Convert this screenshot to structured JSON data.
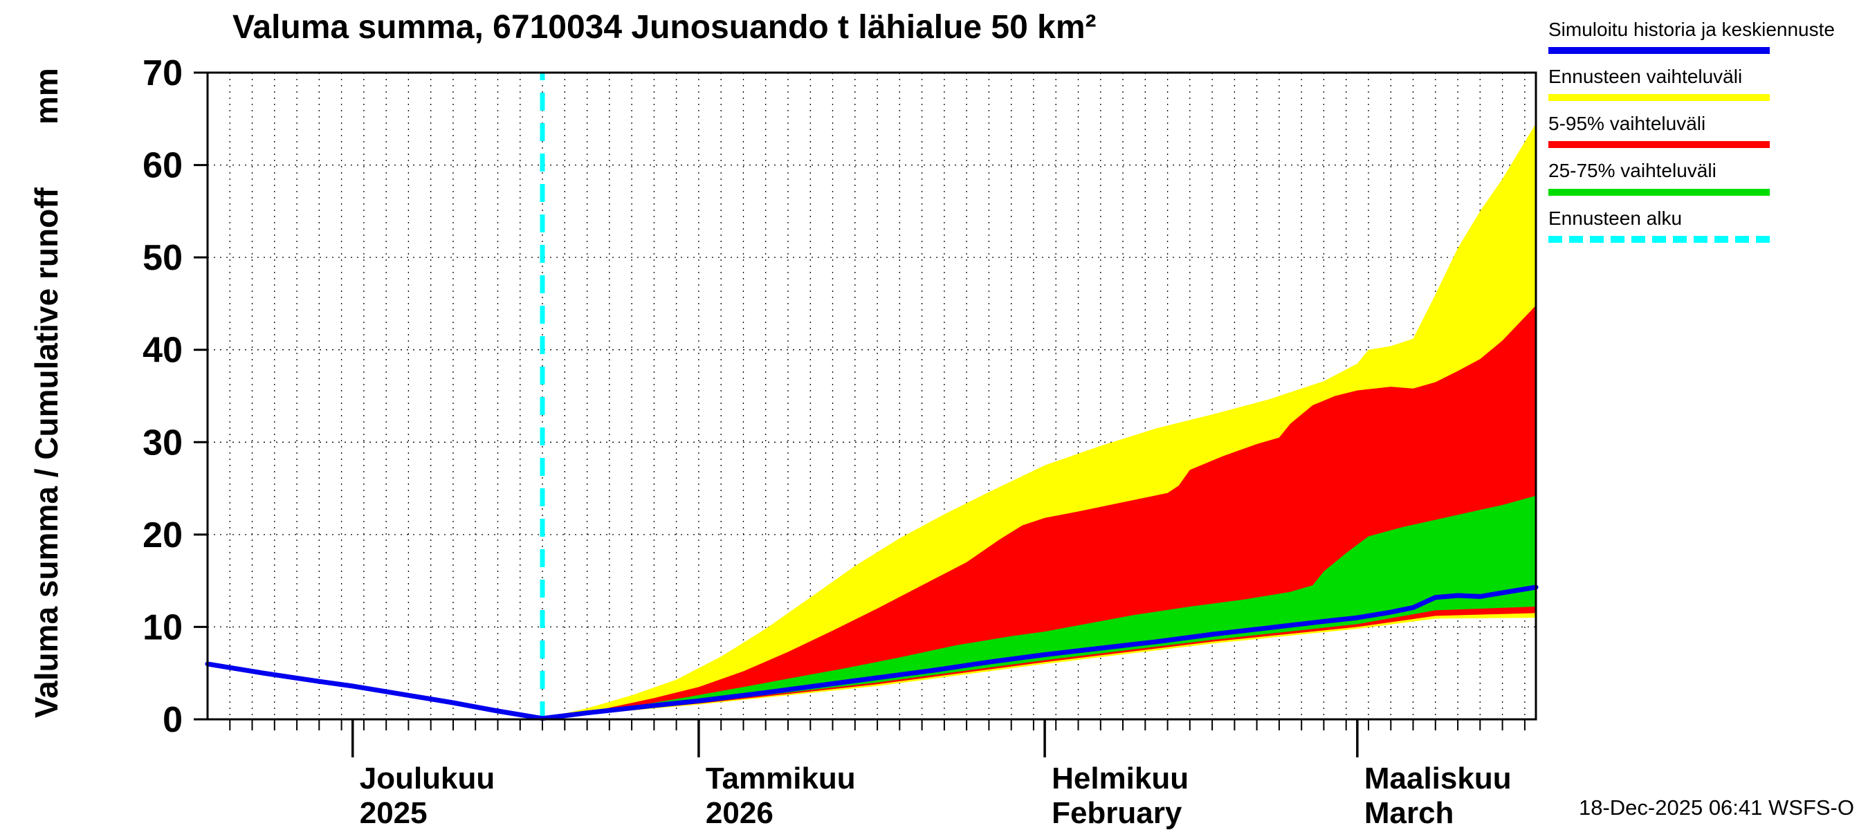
{
  "title": "Valuma summa, 6710034 Junosuando t lähialue 50 km²",
  "y_axis": {
    "label": "Valuma summa / Cumulative runoff",
    "unit": "mm"
  },
  "timestamp": "18-Dec-2025 06:41 WSFS-O",
  "legend": [
    {
      "label": "Simuloitu historia ja keskiennuste",
      "color": "#0000EE",
      "style": "solid"
    },
    {
      "label": "Ennusteen vaihteluväli",
      "color": "#FFFF00",
      "style": "solid"
    },
    {
      "label": "5-95% vaihteluväli",
      "color": "#FF0000",
      "style": "solid"
    },
    {
      "label": "25-75% vaihteluväli",
      "color": "#00DC00",
      "style": "solid"
    },
    {
      "label": "Ennusteen alku",
      "color": "#00FFFF",
      "style": "dashed"
    }
  ],
  "chart_data": {
    "type": "area",
    "title": "Valuma summa, 6710034 Junosuando t lähialue 50 km²",
    "ylabel": "Valuma summa / Cumulative runoff (mm)",
    "ylim": [
      0,
      70
    ],
    "y_ticks": [
      0,
      10,
      20,
      30,
      40,
      50,
      60,
      70
    ],
    "x_axis_days": [
      0,
      119
    ],
    "minor_step_days": 2,
    "grid": "dotted",
    "legend_position": "outside-right",
    "forecast_start_day": 30,
    "forecast_start_color": "#00FFFF",
    "months": [
      {
        "day": 13,
        "line1": "Joulukuu",
        "line2": "2025"
      },
      {
        "day": 44,
        "line1": "Tammikuu",
        "line2": "2026"
      },
      {
        "day": 75,
        "line1": "Helmikuu",
        "line2": "February"
      },
      {
        "day": 103,
        "line1": "Maaliskuu",
        "line2": "March"
      }
    ],
    "bands": [
      {
        "name": "Ennusteen vaihteluväli",
        "color": "#FFFF00",
        "high": [
          [
            30,
            0.1
          ],
          [
            34,
            1.2
          ],
          [
            38,
            2.6
          ],
          [
            42,
            4.3
          ],
          [
            46,
            6.8
          ],
          [
            50,
            9.8
          ],
          [
            54,
            13.2
          ],
          [
            58,
            16.6
          ],
          [
            62,
            19.6
          ],
          [
            66,
            22.2
          ],
          [
            70,
            24.6
          ],
          [
            75,
            27.5
          ],
          [
            80,
            29.6
          ],
          [
            85,
            31.5
          ],
          [
            90,
            33.0
          ],
          [
            95,
            34.6
          ],
          [
            100,
            36.6
          ],
          [
            103,
            38.5
          ],
          [
            104,
            40.0
          ],
          [
            106,
            40.4
          ],
          [
            108,
            41.2
          ],
          [
            110,
            46.0
          ],
          [
            112,
            51.0
          ],
          [
            114,
            55.0
          ],
          [
            116,
            58.5
          ],
          [
            119,
            64.5
          ]
        ],
        "low": [
          [
            30,
            0.1
          ],
          [
            44,
            1.6
          ],
          [
            60,
            3.6
          ],
          [
            75,
            6.0
          ],
          [
            90,
            8.2
          ],
          [
            103,
            9.8
          ],
          [
            110,
            10.9
          ],
          [
            119,
            11.0
          ]
        ]
      },
      {
        "name": "5-95% vaihteluväli",
        "color": "#FF0000",
        "high": [
          [
            30,
            0.1
          ],
          [
            35,
            1.0
          ],
          [
            40,
            2.3
          ],
          [
            44,
            3.5
          ],
          [
            48,
            5.2
          ],
          [
            52,
            7.3
          ],
          [
            56,
            9.6
          ],
          [
            60,
            12.0
          ],
          [
            64,
            14.5
          ],
          [
            68,
            17.0
          ],
          [
            71,
            19.5
          ],
          [
            73,
            21.0
          ],
          [
            75,
            21.8
          ],
          [
            78,
            22.5
          ],
          [
            82,
            23.5
          ],
          [
            86,
            24.5
          ],
          [
            87,
            25.3
          ],
          [
            88,
            27.0
          ],
          [
            91,
            28.5
          ],
          [
            94,
            29.8
          ],
          [
            96,
            30.5
          ],
          [
            97,
            32.0
          ],
          [
            99,
            34.0
          ],
          [
            101,
            35.0
          ],
          [
            103,
            35.6
          ],
          [
            106,
            36.0
          ],
          [
            108,
            35.8
          ],
          [
            110,
            36.5
          ],
          [
            112,
            37.7
          ],
          [
            114,
            39.0
          ],
          [
            116,
            41.0
          ],
          [
            119,
            44.8
          ]
        ],
        "low": [
          [
            30,
            0.1
          ],
          [
            44,
            1.7
          ],
          [
            60,
            3.8
          ],
          [
            75,
            6.2
          ],
          [
            90,
            8.4
          ],
          [
            103,
            10.0
          ],
          [
            110,
            11.2
          ],
          [
            119,
            11.5
          ]
        ]
      },
      {
        "name": "25-75% vaihteluväli",
        "color": "#00DC00",
        "high": [
          [
            30,
            0.1
          ],
          [
            36,
            1.0
          ],
          [
            42,
            2.2
          ],
          [
            48,
            3.5
          ],
          [
            52,
            4.4
          ],
          [
            57,
            5.5
          ],
          [
            62,
            6.7
          ],
          [
            67,
            8.0
          ],
          [
            72,
            9.0
          ],
          [
            75,
            9.5
          ],
          [
            79,
            10.4
          ],
          [
            83,
            11.3
          ],
          [
            88,
            12.2
          ],
          [
            93,
            13.0
          ],
          [
            97,
            13.8
          ],
          [
            99,
            14.5
          ],
          [
            100,
            16.0
          ],
          [
            102,
            18.0
          ],
          [
            104,
            19.8
          ],
          [
            107,
            20.8
          ],
          [
            110,
            21.6
          ],
          [
            113,
            22.4
          ],
          [
            116,
            23.2
          ],
          [
            119,
            24.2
          ]
        ],
        "low": [
          [
            30,
            0.1
          ],
          [
            44,
            1.8
          ],
          [
            60,
            4.0
          ],
          [
            75,
            6.4
          ],
          [
            90,
            8.6
          ],
          [
            103,
            10.3
          ],
          [
            110,
            11.8
          ],
          [
            119,
            12.2
          ]
        ]
      }
    ],
    "line": {
      "name": "Simuloitu historia ja keskiennuste",
      "color": "#0000EE",
      "points": [
        [
          0,
          6.0
        ],
        [
          5,
          5.0
        ],
        [
          10,
          4.1
        ],
        [
          13,
          3.6
        ],
        [
          18,
          2.6
        ],
        [
          22,
          1.8
        ],
        [
          26,
          0.9
        ],
        [
          30,
          0.1
        ],
        [
          34,
          0.7
        ],
        [
          40,
          1.5
        ],
        [
          44,
          2.0
        ],
        [
          50,
          2.9
        ],
        [
          55,
          3.7
        ],
        [
          60,
          4.5
        ],
        [
          65,
          5.3
        ],
        [
          70,
          6.2
        ],
        [
          75,
          7.0
        ],
        [
          80,
          7.7
        ],
        [
          85,
          8.4
        ],
        [
          90,
          9.2
        ],
        [
          95,
          9.9
        ],
        [
          100,
          10.6
        ],
        [
          103,
          11.0
        ],
        [
          106,
          11.6
        ],
        [
          108,
          12.1
        ],
        [
          110,
          13.2
        ],
        [
          112,
          13.4
        ],
        [
          114,
          13.3
        ],
        [
          116,
          13.7
        ],
        [
          119,
          14.3
        ]
      ]
    }
  }
}
